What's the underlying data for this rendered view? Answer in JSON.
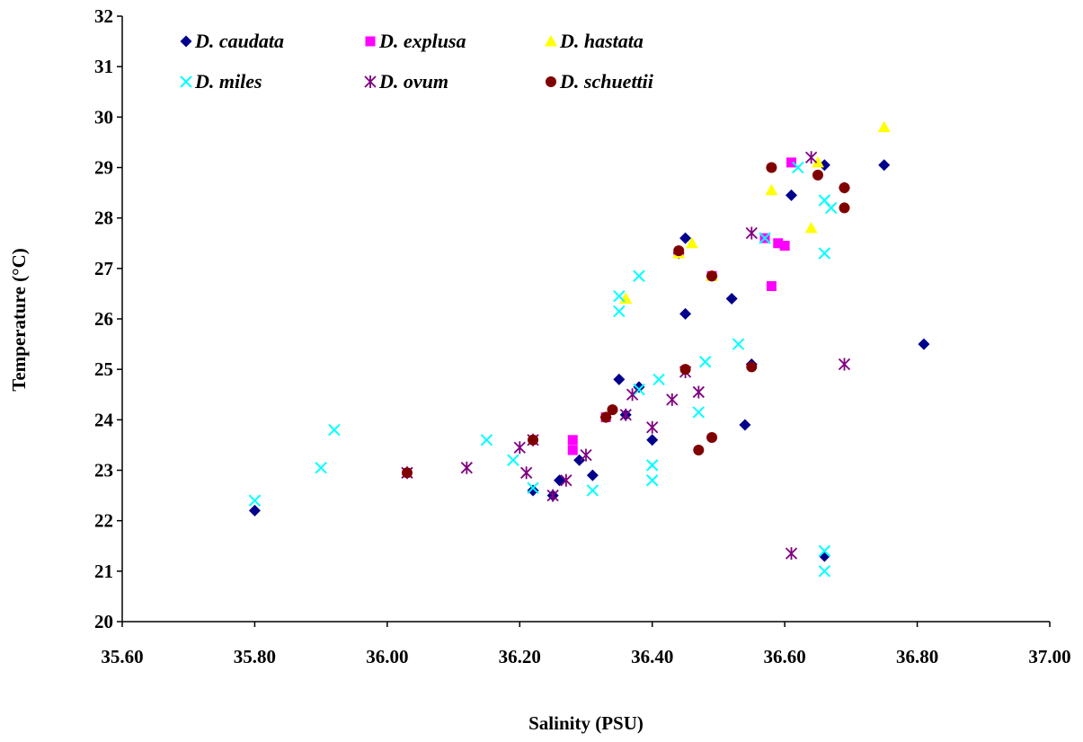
{
  "chart_data": {
    "type": "scatter",
    "title": "",
    "xlabel": "Salinity (PSU)",
    "ylabel": "Temperature (°C)",
    "xlim": [
      35.6,
      37.0
    ],
    "ylim": [
      20,
      32
    ],
    "x_ticks": [
      "35.60",
      "35.80",
      "36.00",
      "36.20",
      "36.40",
      "36.60",
      "36.80",
      "37.00"
    ],
    "y_ticks": [
      "20",
      "21",
      "22",
      "23",
      "24",
      "25",
      "26",
      "27",
      "28",
      "29",
      "30",
      "31",
      "32"
    ],
    "grid": false,
    "legend_position": "top-left inside",
    "series": [
      {
        "name": "D. caudata",
        "marker": "diamond",
        "color": "#00008B",
        "points": [
          [
            35.8,
            22.2
          ],
          [
            36.22,
            22.6
          ],
          [
            36.25,
            22.5
          ],
          [
            36.26,
            22.8
          ],
          [
            36.29,
            23.2
          ],
          [
            36.31,
            22.9
          ],
          [
            36.33,
            24.05
          ],
          [
            36.35,
            24.8
          ],
          [
            36.36,
            24.1
          ],
          [
            36.38,
            24.65
          ],
          [
            36.4,
            23.6
          ],
          [
            36.44,
            27.3
          ],
          [
            36.45,
            26.1
          ],
          [
            36.45,
            27.6
          ],
          [
            36.49,
            26.85
          ],
          [
            36.52,
            26.4
          ],
          [
            36.54,
            23.9
          ],
          [
            36.55,
            25.1
          ],
          [
            36.61,
            28.45
          ],
          [
            36.66,
            29.05
          ],
          [
            36.66,
            21.3
          ],
          [
            36.69,
            28.6
          ],
          [
            36.75,
            29.05
          ],
          [
            36.81,
            25.5
          ]
        ]
      },
      {
        "name": "D. explusa",
        "marker": "square",
        "color": "#FF00FF",
        "points": [
          [
            36.28,
            23.4
          ],
          [
            36.28,
            23.6
          ],
          [
            36.33,
            24.05
          ],
          [
            36.44,
            27.3
          ],
          [
            36.49,
            26.85
          ],
          [
            36.57,
            27.6
          ],
          [
            36.58,
            26.65
          ],
          [
            36.59,
            27.5
          ],
          [
            36.6,
            27.45
          ],
          [
            36.61,
            29.1
          ]
        ]
      },
      {
        "name": "D. hastata",
        "marker": "triangle",
        "color": "#FFFF00",
        "points": [
          [
            36.36,
            26.4
          ],
          [
            36.44,
            27.3
          ],
          [
            36.46,
            27.5
          ],
          [
            36.49,
            26.85
          ],
          [
            36.58,
            28.55
          ],
          [
            36.64,
            27.8
          ],
          [
            36.65,
            29.1
          ],
          [
            36.75,
            29.8
          ]
        ]
      },
      {
        "name": "D. miles",
        "marker": "x",
        "color": "#00FFFF",
        "points": [
          [
            35.8,
            22.4
          ],
          [
            35.9,
            23.05
          ],
          [
            35.92,
            23.8
          ],
          [
            36.15,
            23.6
          ],
          [
            36.19,
            23.2
          ],
          [
            36.22,
            22.65
          ],
          [
            36.31,
            22.6
          ],
          [
            36.35,
            26.15
          ],
          [
            36.35,
            26.45
          ],
          [
            36.38,
            26.85
          ],
          [
            36.38,
            24.6
          ],
          [
            36.4,
            23.1
          ],
          [
            36.4,
            22.8
          ],
          [
            36.41,
            24.8
          ],
          [
            36.47,
            24.15
          ],
          [
            36.48,
            25.15
          ],
          [
            36.53,
            25.5
          ],
          [
            36.57,
            27.6
          ],
          [
            36.62,
            29.0
          ],
          [
            36.66,
            28.35
          ],
          [
            36.66,
            27.3
          ],
          [
            36.67,
            28.2
          ],
          [
            36.66,
            21.4
          ],
          [
            36.66,
            21.0
          ]
        ]
      },
      {
        "name": "D. ovum",
        "marker": "asterisk",
        "color": "#800080",
        "points": [
          [
            36.03,
            22.95
          ],
          [
            36.12,
            23.05
          ],
          [
            36.2,
            23.45
          ],
          [
            36.21,
            22.95
          ],
          [
            36.22,
            23.6
          ],
          [
            36.25,
            22.5
          ],
          [
            36.27,
            22.8
          ],
          [
            36.3,
            23.3
          ],
          [
            36.36,
            24.1
          ],
          [
            36.37,
            24.5
          ],
          [
            36.4,
            23.85
          ],
          [
            36.43,
            24.4
          ],
          [
            36.45,
            24.95
          ],
          [
            36.47,
            24.55
          ],
          [
            36.55,
            27.7
          ],
          [
            36.61,
            21.35
          ],
          [
            36.64,
            29.2
          ],
          [
            36.69,
            25.1
          ]
        ]
      },
      {
        "name": "D. schuettii",
        "marker": "circle",
        "color": "#800000",
        "points": [
          [
            36.03,
            22.95
          ],
          [
            36.22,
            23.6
          ],
          [
            36.33,
            24.05
          ],
          [
            36.34,
            24.2
          ],
          [
            36.44,
            27.35
          ],
          [
            36.45,
            25.0
          ],
          [
            36.47,
            23.4
          ],
          [
            36.49,
            23.65
          ],
          [
            36.49,
            26.85
          ],
          [
            36.55,
            25.05
          ],
          [
            36.58,
            29.0
          ],
          [
            36.65,
            28.85
          ],
          [
            36.69,
            28.6
          ],
          [
            36.69,
            28.2
          ]
        ]
      }
    ]
  }
}
